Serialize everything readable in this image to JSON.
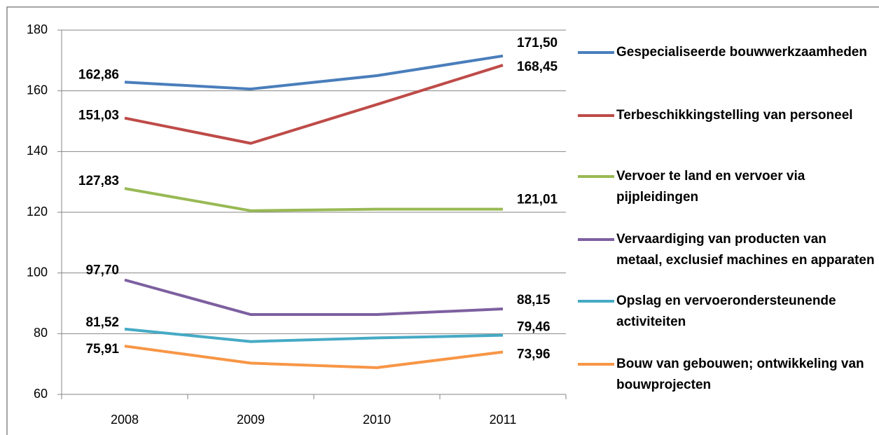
{
  "chart_data": {
    "type": "line",
    "categories": [
      "2008",
      "2009",
      "2010",
      "2011"
    ],
    "series": [
      {
        "name": "Gespecialiseerde bouwwerkzaamheden",
        "color": "#4a7ebb",
        "values": [
          162.86,
          160.6,
          165.0,
          171.5
        ],
        "value_labels": [
          "162,86",
          null,
          null,
          "171,50"
        ]
      },
      {
        "name": "Terbeschikkingstelling van personeel",
        "color": "#be4b48",
        "values": [
          151.03,
          142.7,
          155.5,
          168.45
        ],
        "value_labels": [
          "151,03",
          null,
          null,
          "168,45"
        ]
      },
      {
        "name": "Vervoer te land en vervoer via pijpleidingen",
        "color": "#98b954",
        "values": [
          127.83,
          120.5,
          121.0,
          121.01
        ],
        "value_labels": [
          "127,83",
          null,
          null,
          "121,01"
        ]
      },
      {
        "name": "Vervaardiging van producten van metaal, exclusief machines en apparaten",
        "color": "#7d60a0",
        "values": [
          97.7,
          86.3,
          86.3,
          88.15
        ],
        "value_labels": [
          "97,70",
          null,
          null,
          "88,15"
        ]
      },
      {
        "name": "Opslag en vervoerondersteunende activiteiten",
        "color": "#46aac5",
        "values": [
          81.52,
          77.4,
          78.6,
          79.46
        ],
        "value_labels": [
          "81,52",
          null,
          null,
          "79,46"
        ]
      },
      {
        "name": "Bouw van gebouwen; ontwikkeling van bouwprojecten",
        "color": "#f79646",
        "values": [
          75.91,
          70.3,
          68.8,
          73.96
        ],
        "value_labels": [
          "75,91",
          null,
          null,
          "73,96"
        ]
      }
    ],
    "ylim": [
      60,
      180
    ],
    "yticks": [
      60,
      80,
      100,
      120,
      140,
      160,
      180
    ],
    "grid": true,
    "legend": "right"
  }
}
